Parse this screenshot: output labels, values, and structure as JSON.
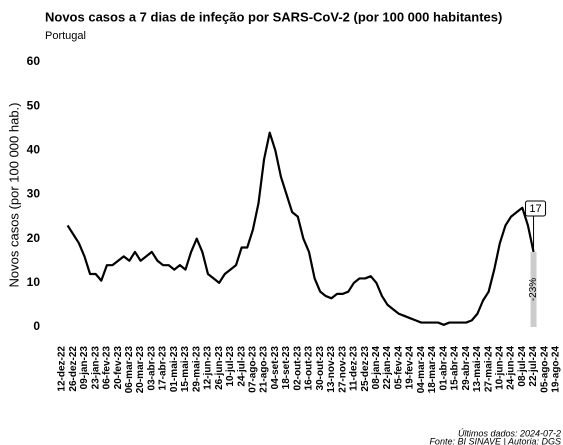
{
  "chart_data": {
    "type": "line",
    "title": "Novos casos a 7 dias de infeção por SARS-CoV-2 (por 100 000 habitantes)",
    "subtitle": "Portugal",
    "y_label": "Novos casos (por 100 000 hab.)",
    "categories": [
      "12-dez-22",
      null,
      "26-dez-22",
      null,
      "09-jan-23",
      null,
      "23-jan-23",
      null,
      "06-fev-23",
      null,
      "20-fev-23",
      null,
      "06-mar-23",
      null,
      "20-mar-23",
      null,
      "03-abr-23",
      null,
      "17-abr-23",
      null,
      "01-mai-23",
      null,
      "15-mai-23",
      null,
      "29-mai-23",
      null,
      "12-jun-23",
      null,
      "26-jun-23",
      null,
      "10-jul-23",
      null,
      "24-jul-23",
      null,
      "07-ago-23",
      null,
      "21-ago-23",
      null,
      "04-set-23",
      null,
      "18-set-23",
      null,
      "02-out-23",
      null,
      "16-out-23",
      null,
      "30-out-23",
      null,
      "13-nov-23",
      null,
      "27-nov-23",
      null,
      "11-dez-23",
      null,
      "25-dez-23",
      null,
      "08-jan-24",
      null,
      "22-jan-24",
      null,
      "05-fev-24",
      null,
      "19-fev-24",
      null,
      "04-mar-24",
      null,
      "18-mar-24",
      null,
      "01-abr-24",
      null,
      "15-abr-24",
      null,
      "29-abr-24",
      null,
      "13-mai-24",
      null,
      "27-mai-24",
      null,
      "10-jun-24",
      null,
      "24-jun-24",
      null,
      "08-jul-24",
      null,
      "22-jul-24",
      null,
      "05-ago-24",
      null,
      "19-ago-24"
    ],
    "series": [
      {
        "name": "Novos casos",
        "color": "#000000",
        "values": [
          null,
          23,
          21,
          19,
          16,
          12,
          12,
          10.5,
          14,
          14,
          15,
          16,
          15,
          17,
          15,
          16,
          17,
          15,
          14,
          14,
          13,
          14,
          13,
          17,
          20,
          17,
          12,
          11,
          10,
          12,
          13,
          14,
          18,
          18,
          22,
          28,
          38,
          44,
          40,
          34,
          30,
          26,
          25,
          20,
          17,
          11,
          8,
          7,
          6.5,
          7.5,
          7.5,
          8,
          10,
          11,
          11,
          11.5,
          10,
          7,
          5,
          4,
          3,
          2.5,
          2,
          1.5,
          1,
          1,
          1,
          1,
          0.5,
          1,
          1,
          1,
          1,
          1.5,
          3,
          6,
          8,
          13,
          19,
          23,
          25,
          26,
          27,
          23,
          17,
          null,
          null,
          null,
          null
        ]
      }
    ],
    "last_label": "17",
    "change_label": "-23%",
    "ylim": [
      0,
      60
    ],
    "yticks": [
      0,
      10,
      20,
      30,
      40,
      50,
      60
    ],
    "footer": [
      "Últimos dados: 2024-07-2",
      "Fonte: BI SINAVE | Autoria: DGS"
    ]
  }
}
